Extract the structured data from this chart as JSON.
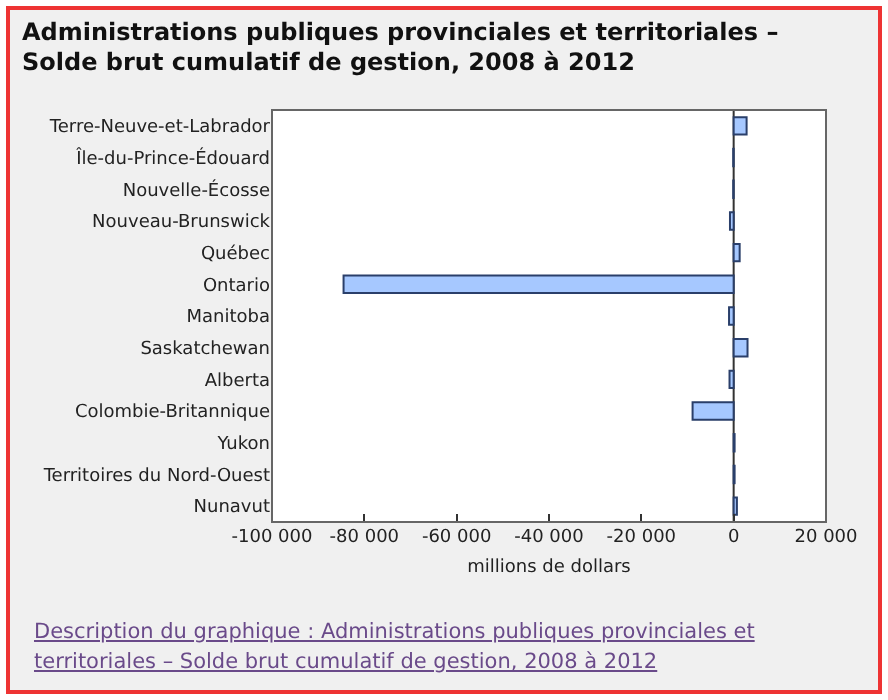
{
  "chart_data": {
    "type": "bar",
    "orientation": "horizontal",
    "title": "Administrations publiques provinciales et territoriales – Solde brut cumulatif de gestion, 2008 à 2012",
    "xlabel": "millions de dollars",
    "categories": [
      "Terre-Neuve-et-Labrador",
      "Île-du-Prince-Édouard",
      "Nouvelle-Écosse",
      "Nouveau-Brunswick",
      "Québec",
      "Ontario",
      "Manitoba",
      "Saskatchewan",
      "Alberta",
      "Colombie-Britannique",
      "Yukon",
      "Territoires du Nord-Ouest",
      "Nunavut"
    ],
    "values": [
      2800,
      -100,
      -100,
      -800,
      1300,
      -84500,
      -1000,
      3000,
      -900,
      -8900,
      200,
      200,
      700
    ],
    "color": "#a6c8ff",
    "xlim": [
      -100000,
      20000
    ],
    "xticks": [
      {
        "value": -100000,
        "label": "-100 000"
      },
      {
        "value": -80000,
        "label": "-80 000"
      },
      {
        "value": -60000,
        "label": "-60 000"
      },
      {
        "value": -40000,
        "label": "-40 000"
      },
      {
        "value": -20000,
        "label": "-20 000"
      },
      0,
      {
        "value": 20000,
        "label": "20 000"
      }
    ],
    "ref_lines": [
      {
        "axis": "x",
        "value": 0,
        "color": "#333333"
      }
    ],
    "grid": false,
    "legend": false,
    "annotations": [
      "Description du graphique : Administrations publiques provinciales et territoriales – Solde brut cumulatif de gestion, 2008 à 2012"
    ]
  }
}
